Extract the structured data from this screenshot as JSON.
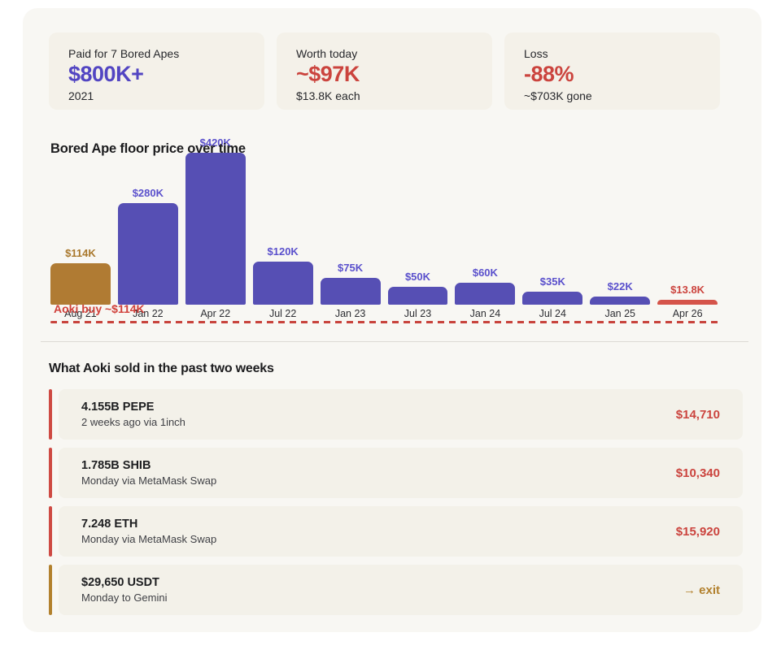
{
  "stats": [
    {
      "label": "Paid for 7 Bored Apes",
      "value": "$800K+",
      "sub": "2021",
      "value_color": "#5245c2"
    },
    {
      "label": "Worth today",
      "value": "~$97K",
      "sub": "$13.8K each",
      "value_color": "#cb443e"
    },
    {
      "label": "Loss",
      "value": "-88%",
      "sub": "~$703K gone",
      "value_color": "#cb443e"
    }
  ],
  "chart_data": {
    "type": "bar",
    "title": "Bored Ape floor price over time",
    "categories": [
      "Aug 21",
      "Jan 22",
      "Apr 22",
      "Jul 22",
      "Jan 23",
      "Jul 23",
      "Jan 24",
      "Jul 24",
      "Jan 25",
      "Apr 26"
    ],
    "values": [
      114,
      280,
      420,
      120,
      75,
      50,
      60,
      35,
      22,
      13.8
    ],
    "labels": [
      "$114K",
      "$280K",
      "$420K",
      "$120K",
      "$75K",
      "$50K",
      "$60K",
      "$35K",
      "$22K",
      "$13.8K"
    ],
    "unit": "USD thousands",
    "ylim": [
      0,
      420
    ],
    "grid": false,
    "legend": false,
    "bar_colors": [
      "#b07b33",
      "#564fb4",
      "#564fb4",
      "#564fb4",
      "#564fb4",
      "#564fb4",
      "#564fb4",
      "#564fb4",
      "#564fb4",
      "#d5544a"
    ],
    "label_colors": [
      "#a9782c",
      "#5a50cc",
      "#5a50cc",
      "#5a50cc",
      "#5a50cc",
      "#5a50cc",
      "#5a50cc",
      "#5a50cc",
      "#5a50cc",
      "#cc443e"
    ],
    "annotation": "Aoki buy ~$114K",
    "annotation_color": "#d0403a",
    "baseline_dashed_line_color": "#c8433c"
  },
  "sold": {
    "heading": "What Aoki sold in the past two weeks",
    "items": [
      {
        "title": "4.155B PEPE",
        "sub": "2 weeks ago via 1inch",
        "amount": "$14,710",
        "amount_color": "#cb443e",
        "accent_color": "#ce4a43",
        "arrow": false
      },
      {
        "title": "1.785B SHIB",
        "sub": "Monday via MetaMask Swap",
        "amount": "$10,340",
        "amount_color": "#cb443e",
        "accent_color": "#ce4a43",
        "arrow": false
      },
      {
        "title": "7.248 ETH",
        "sub": "Monday via MetaMask Swap",
        "amount": "$15,920",
        "amount_color": "#cb443e",
        "accent_color": "#ce4a43",
        "arrow": false
      },
      {
        "title": "$29,650 USDT",
        "sub": "Monday to Gemini",
        "amount": "exit",
        "amount_color": "#b2812e",
        "accent_color": "#b2812e",
        "arrow": true
      }
    ]
  }
}
